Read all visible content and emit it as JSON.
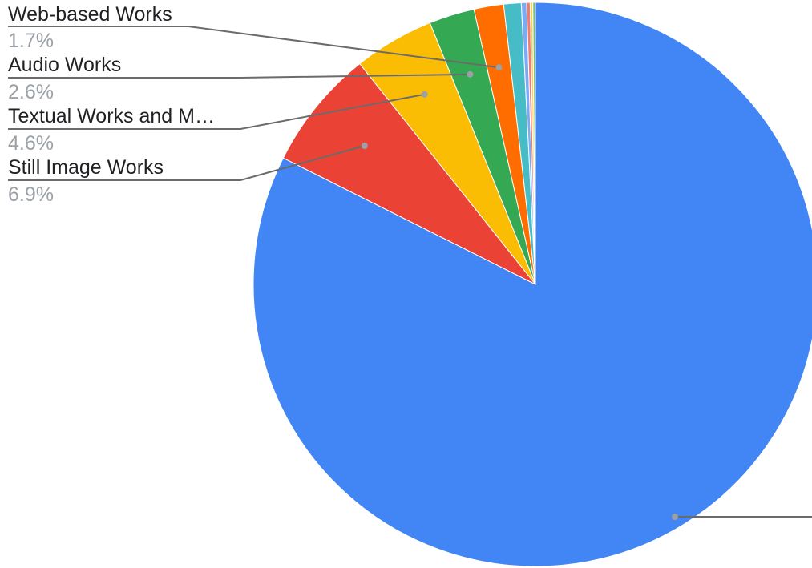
{
  "chart_data": {
    "type": "pie",
    "title": "",
    "slices": [
      {
        "label": "",
        "value": 82.4,
        "pct_label": "",
        "color": "#4285f4"
      },
      {
        "label": "Still Image Works",
        "value": 6.9,
        "pct_label": "6.9%",
        "color": "#ea4335"
      },
      {
        "label": "Textual Works and M…",
        "value": 4.6,
        "pct_label": "4.6%",
        "color": "#fbbc04"
      },
      {
        "label": "Audio Works",
        "value": 2.6,
        "pct_label": "2.6%",
        "color": "#34a853"
      },
      {
        "label": "Web-based Works",
        "value": 1.7,
        "pct_label": "1.7%",
        "color": "#ff6d01"
      },
      {
        "label": "",
        "value": 1.0,
        "pct_label": "",
        "color": "#46bdc6"
      },
      {
        "label": "",
        "value": 0.3,
        "pct_label": "",
        "color": "#7baaf7"
      },
      {
        "label": "",
        "value": 0.2,
        "pct_label": "",
        "color": "#f07b72"
      },
      {
        "label": "",
        "value": 0.15,
        "pct_label": "",
        "color": "#fcd04f"
      },
      {
        "label": "",
        "value": 0.15,
        "pct_label": "",
        "color": "#71c287"
      }
    ],
    "legend": "none",
    "start_angle": "top, clockwise"
  }
}
